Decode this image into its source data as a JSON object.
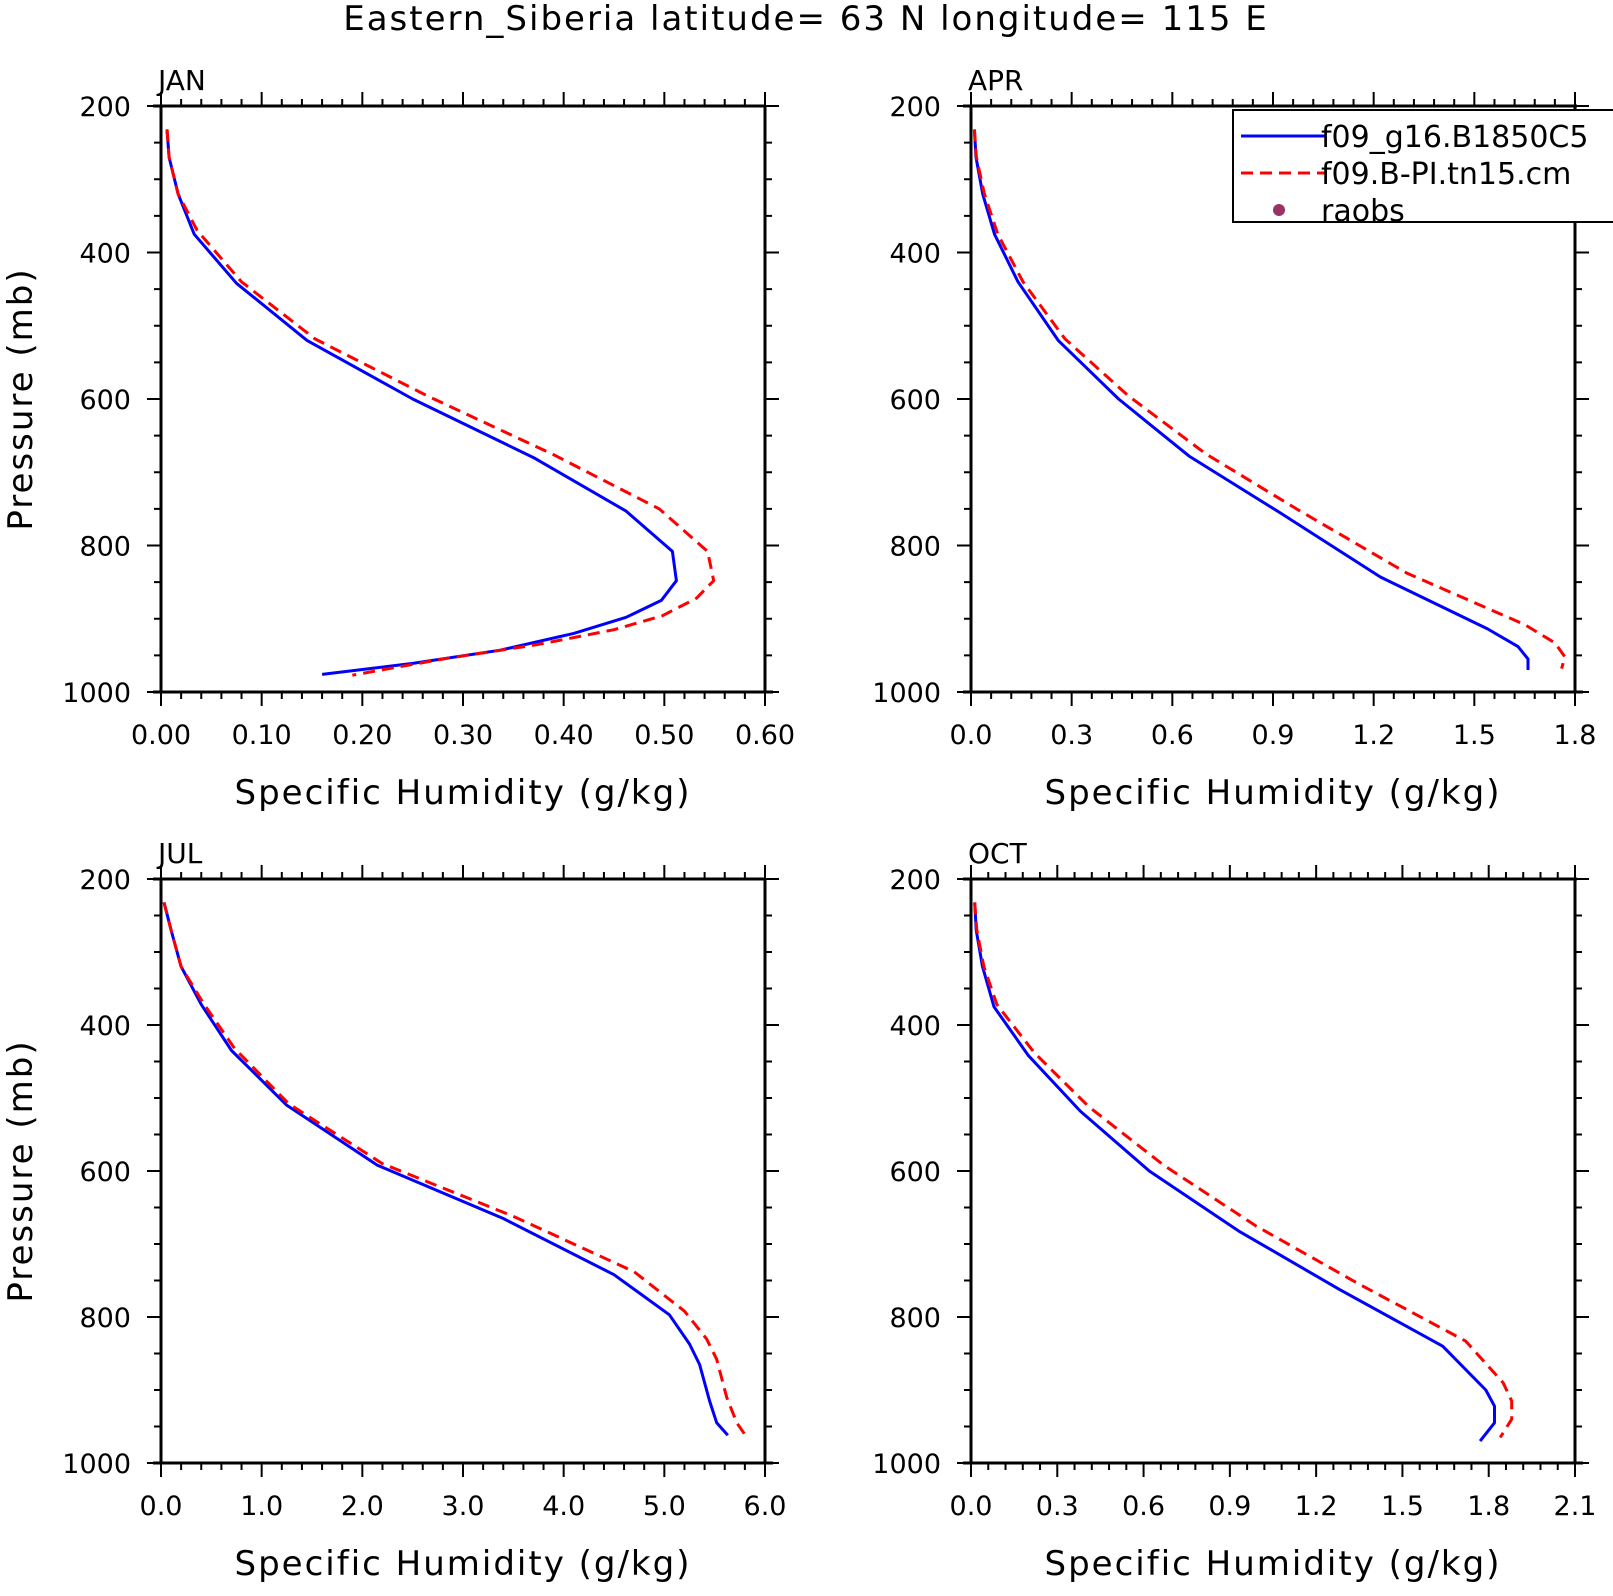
{
  "title": "Eastern_Siberia  latitude= 63 N longitude= 115 E",
  "legend": {
    "entries": [
      {
        "label": "f09_g16.B1850C5",
        "color": "#0000ff",
        "style": "solid"
      },
      {
        "label": "f09.B-PI.tn15.cm",
        "color": "#ff0000",
        "style": "dashed"
      },
      {
        "label": "raobs",
        "color": "#993366",
        "style": "dot"
      }
    ]
  },
  "chart_data": [
    {
      "type": "line",
      "panel": "JAN",
      "title": "JAN",
      "xlabel": "Specific Humidity (g/kg)",
      "ylabel": "Pressure (mb)",
      "xlim": [
        0.0,
        0.6
      ],
      "ylim": [
        1000,
        200
      ],
      "xticks": [
        "0.00",
        "0.10",
        "0.20",
        "0.30",
        "0.40",
        "0.50",
        "0.60"
      ],
      "yticks": [
        "200",
        "400",
        "600",
        "800",
        "1000"
      ],
      "series": [
        {
          "name": "f09_g16.B1850C5",
          "color": "#0000ff",
          "style": "solid",
          "x": [
            0.006,
            0.008,
            0.017,
            0.033,
            0.075,
            0.145,
            0.25,
            0.37,
            0.462,
            0.508,
            0.512,
            0.497,
            0.462,
            0.41,
            0.337,
            0.25,
            0.16
          ],
          "y": [
            232,
            270,
            320,
            375,
            442,
            520,
            600,
            680,
            753,
            808,
            848,
            875,
            898,
            920,
            943,
            961,
            976
          ]
        },
        {
          "name": "f09.B-PI.tn15.cm",
          "color": "#ff0000",
          "style": "dashed",
          "x": [
            0.006,
            0.008,
            0.017,
            0.036,
            0.08,
            0.153,
            0.265,
            0.39,
            0.495,
            0.543,
            0.549,
            0.532,
            0.498,
            0.45,
            0.375,
            0.28,
            0.19
          ],
          "y": [
            232,
            270,
            320,
            370,
            440,
            518,
            596,
            676,
            750,
            808,
            848,
            872,
            896,
            915,
            935,
            955,
            977
          ]
        }
      ]
    },
    {
      "type": "line",
      "panel": "APR",
      "title": "APR",
      "xlabel": "Specific Humidity (g/kg)",
      "ylabel": "",
      "xlim": [
        0.0,
        1.8
      ],
      "ylim": [
        1000,
        200
      ],
      "xticks": [
        "0.0",
        "0.3",
        "0.6",
        "0.9",
        "1.2",
        "1.5",
        "1.8"
      ],
      "yticks": [
        "200",
        "400",
        "600",
        "800",
        "1000"
      ],
      "series": [
        {
          "name": "f09_g16.B1850C5",
          "color": "#0000ff",
          "style": "solid",
          "x": [
            0.01,
            0.015,
            0.035,
            0.07,
            0.14,
            0.26,
            0.44,
            0.65,
            0.92,
            1.22,
            1.54,
            1.63,
            1.66,
            1.66
          ],
          "y": [
            232,
            270,
            320,
            375,
            440,
            520,
            600,
            678,
            755,
            843,
            914,
            938,
            955,
            970
          ]
        },
        {
          "name": "f09.B-PI.tn15.cm",
          "color": "#ff0000",
          "style": "dashed",
          "x": [
            0.01,
            0.016,
            0.04,
            0.08,
            0.155,
            0.28,
            0.47,
            0.7,
            0.97,
            1.3,
            1.65,
            1.74,
            1.77,
            1.76
          ],
          "y": [
            232,
            270,
            320,
            375,
            440,
            518,
            596,
            675,
            750,
            838,
            908,
            933,
            952,
            968
          ]
        }
      ]
    },
    {
      "type": "line",
      "panel": "JUL",
      "title": "JUL",
      "xlabel": "Specific Humidity (g/kg)",
      "ylabel": "Pressure (mb)",
      "xlim": [
        0.0,
        6.0
      ],
      "ylim": [
        1000,
        200
      ],
      "xticks": [
        "0.0",
        "1.0",
        "2.0",
        "3.0",
        "4.0",
        "5.0",
        "6.0"
      ],
      "yticks": [
        "200",
        "400",
        "600",
        "800",
        "1000"
      ],
      "series": [
        {
          "name": "f09_g16.B1850C5",
          "color": "#0000ff",
          "style": "solid",
          "x": [
            0.03,
            0.1,
            0.2,
            0.4,
            0.7,
            1.25,
            2.15,
            3.4,
            4.5,
            5.05,
            5.25,
            5.35,
            5.45,
            5.52,
            5.63
          ],
          "y": [
            232,
            270,
            320,
            372,
            435,
            510,
            592,
            665,
            742,
            797,
            837,
            865,
            915,
            945,
            962
          ]
        },
        {
          "name": "f09.B-PI.tn15.cm",
          "color": "#ff0000",
          "style": "dashed",
          "x": [
            0.03,
            0.1,
            0.2,
            0.42,
            0.73,
            1.27,
            2.2,
            3.5,
            4.7,
            5.2,
            5.42,
            5.52,
            5.62,
            5.72,
            5.82
          ],
          "y": [
            232,
            270,
            320,
            370,
            432,
            508,
            590,
            662,
            738,
            792,
            830,
            858,
            910,
            945,
            965
          ]
        }
      ]
    },
    {
      "type": "line",
      "panel": "OCT",
      "title": "OCT",
      "xlabel": "Specific Humidity (g/kg)",
      "ylabel": "",
      "xlim": [
        0.0,
        2.1
      ],
      "ylim": [
        1000,
        200
      ],
      "xticks": [
        "0.0",
        "0.3",
        "0.6",
        "0.9",
        "1.2",
        "1.5",
        "1.8",
        "2.1"
      ],
      "yticks": [
        "200",
        "400",
        "600",
        "800",
        "1000"
      ],
      "series": [
        {
          "name": "f09_g16.B1850C5",
          "color": "#0000ff",
          "style": "solid",
          "x": [
            0.013,
            0.018,
            0.04,
            0.08,
            0.2,
            0.38,
            0.62,
            0.93,
            1.28,
            1.64,
            1.79,
            1.82,
            1.82,
            1.77
          ],
          "y": [
            232,
            270,
            320,
            375,
            442,
            518,
            600,
            682,
            762,
            840,
            900,
            922,
            945,
            970
          ]
        },
        {
          "name": "f09.B-PI.tn15.cm",
          "color": "#ff0000",
          "style": "dashed",
          "x": [
            0.013,
            0.02,
            0.045,
            0.09,
            0.22,
            0.41,
            0.67,
            0.99,
            1.35,
            1.72,
            1.85,
            1.88,
            1.88,
            1.84
          ],
          "y": [
            232,
            270,
            320,
            372,
            438,
            512,
            592,
            675,
            755,
            833,
            890,
            915,
            940,
            965
          ]
        }
      ]
    }
  ]
}
